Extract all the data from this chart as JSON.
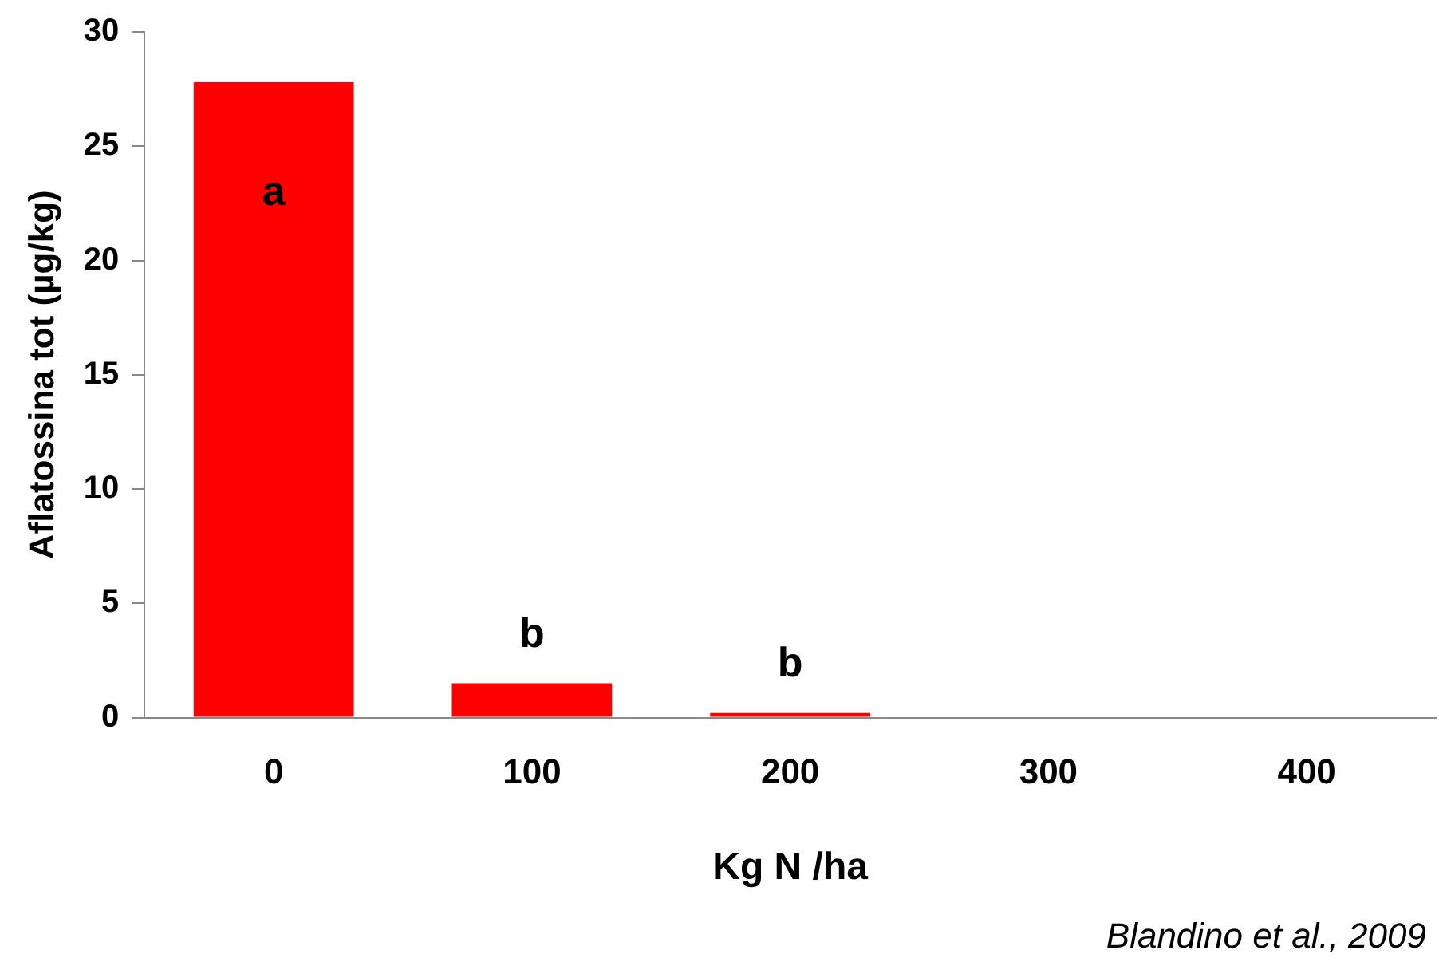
{
  "chart_data": {
    "type": "bar",
    "xlabel": "Kg N /ha",
    "ylabel": "Aflatossina tot (µg/kg)",
    "categories": [
      "0",
      "100",
      "200",
      "300",
      "400"
    ],
    "values": [
      27.8,
      1.5,
      0.2,
      0,
      0
    ],
    "color": "#ff0000",
    "ylim": [
      0,
      30
    ],
    "yticks": [
      0,
      5,
      10,
      15,
      20,
      25,
      30
    ],
    "grid": false,
    "legend": false,
    "annotations": [
      "a",
      "b",
      "b",
      "Blandino et al., 2009"
    ]
  }
}
